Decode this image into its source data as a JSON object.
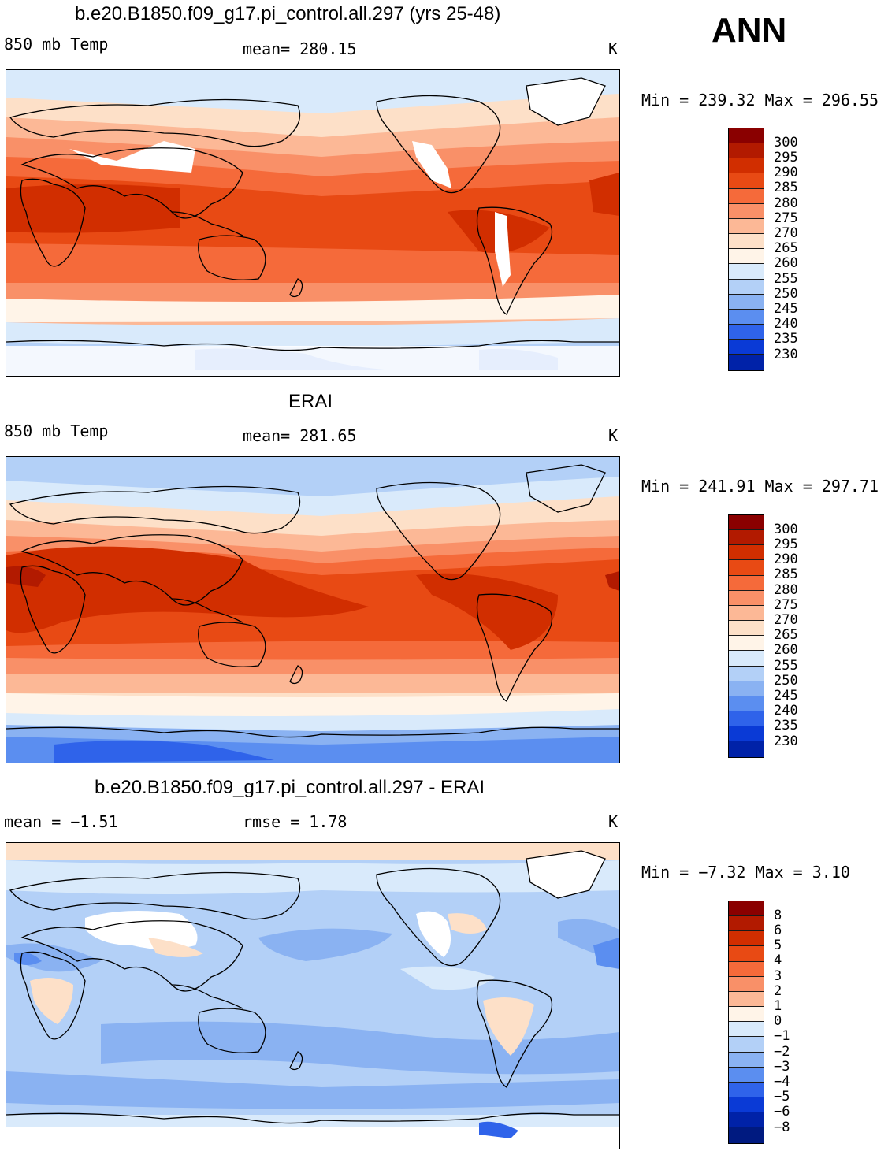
{
  "season": "ANN",
  "panels": [
    {
      "title": "b.e20.B1850.f09_g17.pi_control.all.297 (yrs 25-48)",
      "left_label": "850 mb Temp",
      "center_label": "mean= 280.15",
      "units": "K",
      "minmax": "Min = 239.32 Max = 296.55"
    },
    {
      "title": "ERAI",
      "left_label": "850 mb Temp",
      "center_label": "mean= 281.65",
      "units": "K",
      "minmax": "Min = 241.91 Max = 297.71"
    },
    {
      "title": "b.e20.B1850.f09_g17.pi_control.all.297 - ERAI",
      "left_label": "mean =  −1.51",
      "center_label": "rmse =    1.78",
      "units": "K",
      "minmax": "Min =  −7.32 Max =    3.10"
    }
  ],
  "colorbar_abs": {
    "levels": [
      "300",
      "295",
      "290",
      "285",
      "280",
      "275",
      "270",
      "265",
      "260",
      "255",
      "250",
      "245",
      "240",
      "235",
      "230"
    ],
    "colors": [
      "#8a0000",
      "#b21a00",
      "#d12e00",
      "#e84a14",
      "#f56a3a",
      "#f99068",
      "#fcb896",
      "#fde0c8",
      "#fff4e8",
      "#d9eafb",
      "#b3d0f7",
      "#8ab2f2",
      "#5b8ef0",
      "#2f63ea",
      "#0a3ad6",
      "#0022a8"
    ]
  },
  "colorbar_diff": {
    "levels": [
      "8",
      "6",
      "5",
      "4",
      "3",
      "2",
      "1",
      "0",
      "−1",
      "−2",
      "−3",
      "−4",
      "−5",
      "−6",
      "−8"
    ],
    "colors": [
      "#8a0000",
      "#b21a00",
      "#d12e00",
      "#e84a14",
      "#f56a3a",
      "#f99068",
      "#fcb896",
      "#fff4e8",
      "#d9eafb",
      "#b3d0f7",
      "#8ab2f2",
      "#5b8ef0",
      "#2f63ea",
      "#0a3ad6",
      "#0022a8",
      "#001a80"
    ]
  }
}
